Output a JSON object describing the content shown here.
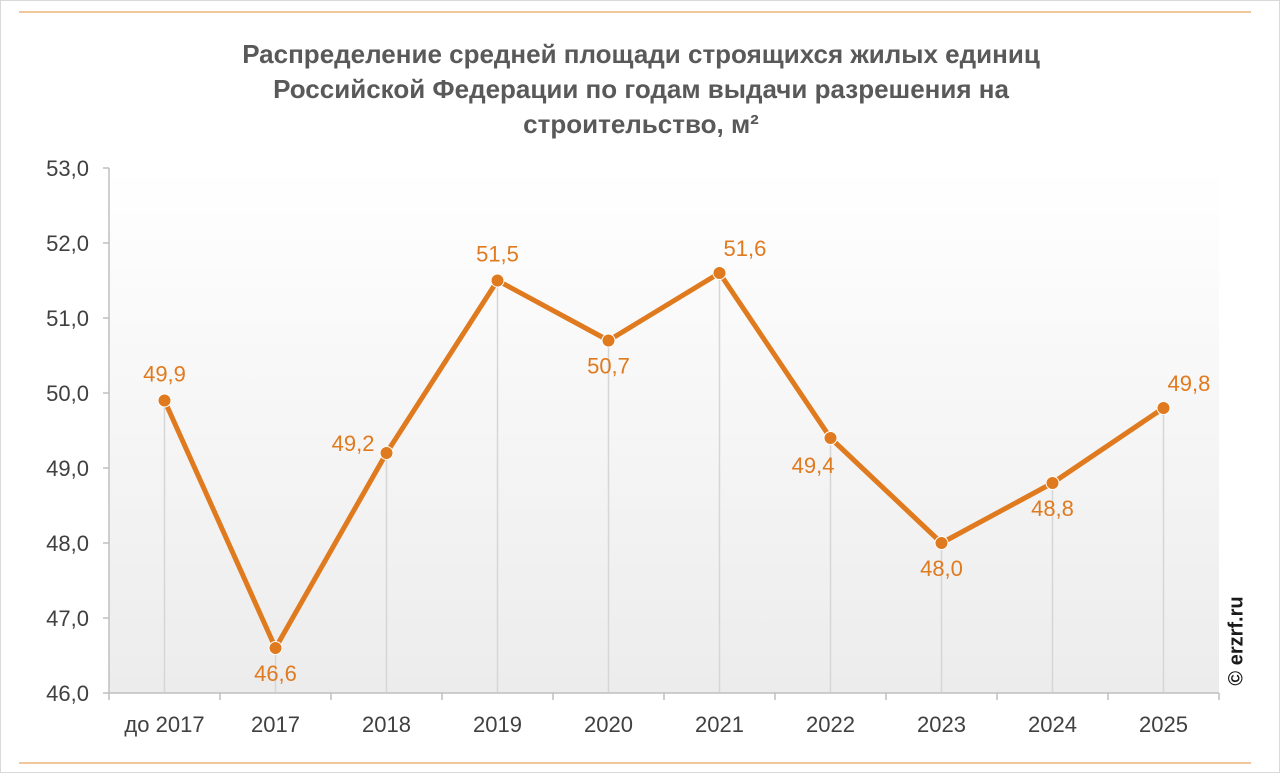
{
  "chart_data": {
    "type": "line",
    "title_lines": [
      "Распределение средней площади строящихся  жилых единиц",
      "Российской  Федерации по годам выдачи разрешения на",
      "строительство,  м²"
    ],
    "categories": [
      "до 2017",
      "2017",
      "2018",
      "2019",
      "2020",
      "2021",
      "2022",
      "2023",
      "2024",
      "2025"
    ],
    "values": [
      49.9,
      46.6,
      49.2,
      51.5,
      50.7,
      51.6,
      49.4,
      48.0,
      48.8,
      49.8
    ],
    "data_labels": [
      "49,9",
      "46,6",
      "49,2",
      "51,5",
      "50,7",
      "51,6",
      "49,4",
      "48,0",
      "48,8",
      "49,8"
    ],
    "label_positions": [
      "above",
      "below",
      "left",
      "above",
      "below",
      "above-right",
      "below-left",
      "below",
      "below",
      "above-right"
    ],
    "ylim": [
      46,
      53
    ],
    "yticks": [
      46,
      47,
      48,
      49,
      50,
      51,
      52,
      53
    ],
    "ytick_labels": [
      "46,0",
      "47,0",
      "48,0",
      "49,0",
      "50,0",
      "51,0",
      "52,0",
      "53,0"
    ],
    "xlabel": "",
    "ylabel": "",
    "grid": "vertical drop lines",
    "series_color": "#e07a1f",
    "label_color": "#e07a1f",
    "axis_text_color": "#404040"
  },
  "credit": "© erzrf.ru"
}
